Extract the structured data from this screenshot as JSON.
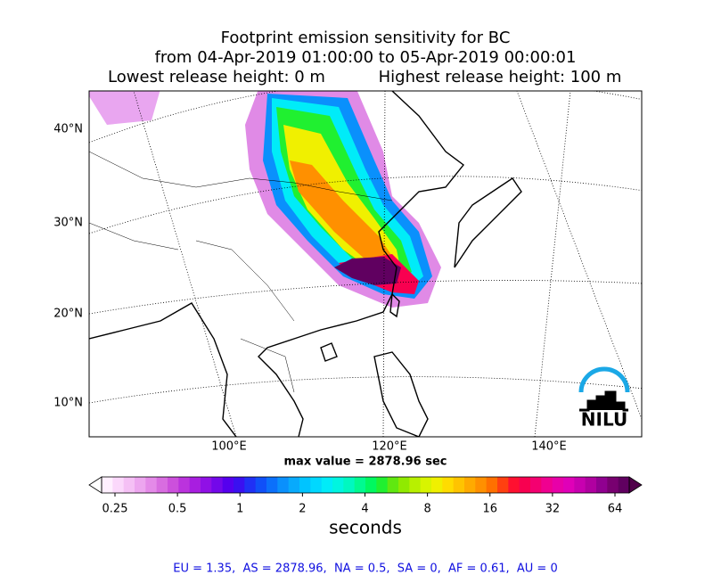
{
  "title": {
    "line1": "Footprint emission sensitivity for BC",
    "line2": "from 04-Apr-2019 01:00:00 to 05-Apr-2019 00:00:01",
    "release_low": "Lowest release height: 0 m",
    "release_high": "Highest release height: 100 m"
  },
  "map": {
    "lat_labels": [
      "40°N",
      "30°N",
      "20°N",
      "10°N"
    ],
    "lon_labels": [
      "100°E",
      "120°E",
      "140°E"
    ],
    "max_value": "max value = 2878.96 sec",
    "logo": "NILU"
  },
  "colorbar": {
    "ticks": [
      "0.25",
      "0.5",
      "1",
      "2",
      "4",
      "8",
      "16",
      "32",
      "64"
    ],
    "label": "seconds",
    "under_color": "#ffffff",
    "over_color": "#50004a",
    "colors": [
      "#fff0ff",
      "#fbd8fb",
      "#f5c0f5",
      "#eda6ef",
      "#e48ae8",
      "#d86de0",
      "#cc50dc",
      "#bb33dd",
      "#a81ee0",
      "#9010e6",
      "#7308ea",
      "#5500ee",
      "#3a10f0",
      "#2030f5",
      "#1050f8",
      "#0b70fb",
      "#0a90fc",
      "#08aafc",
      "#00c4ff",
      "#00d8ff",
      "#00ecf8",
      "#00f5e0",
      "#00f8c0",
      "#00fa90",
      "#00f860",
      "#20f030",
      "#60e810",
      "#90ea00",
      "#b8f000",
      "#d8f400",
      "#f0f000",
      "#ffdc00",
      "#ffc400",
      "#ffaa00",
      "#ff9000",
      "#ff7000",
      "#ff4010",
      "#ff1030",
      "#f80050",
      "#f40070",
      "#f00090",
      "#e800a8",
      "#e000b8",
      "#c800b0",
      "#b000a0",
      "#900090",
      "#780070",
      "#600060"
    ]
  },
  "footer": "EU = 1.35,  AS = 2878.96,  NA = 0.5,  SA = 0,  AF = 0.61,  AU = 0"
}
